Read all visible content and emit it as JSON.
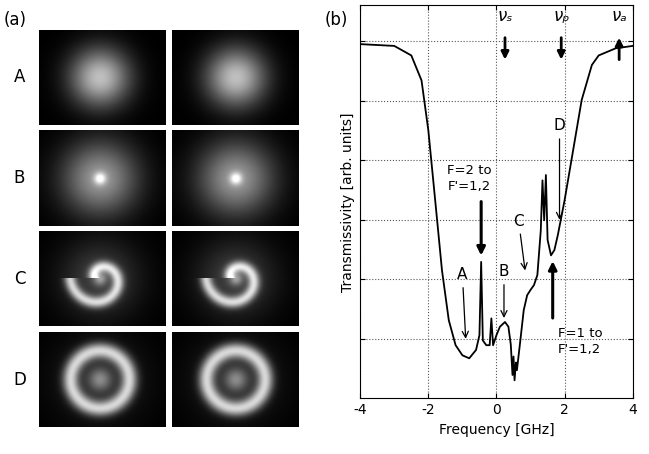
{
  "panel_a": {
    "label": "(a)",
    "rows": [
      "A",
      "B",
      "C",
      "D"
    ]
  },
  "chart_data": {
    "type": "line",
    "panel_label": "(b)",
    "x_label": "Frequency [GHz]",
    "y_label": "Transmissivity [arb. units]",
    "x": [
      -4,
      -3,
      -2.5,
      -2.2,
      -2,
      -1.8,
      -1.6,
      -1.4,
      -1.2,
      -1.0,
      -0.8,
      -0.6,
      -0.5,
      -0.45,
      -0.4,
      -0.3,
      -0.2,
      -0.15,
      -0.1,
      0.0,
      0.1,
      0.25,
      0.35,
      0.42,
      0.47,
      0.5,
      0.53,
      0.57,
      0.6,
      0.7,
      0.8,
      0.9,
      1.0,
      1.1,
      1.2,
      1.3,
      1.35,
      1.4,
      1.45,
      1.5,
      1.6,
      1.7,
      1.8,
      2.0,
      2.2,
      2.5,
      2.8,
      3.0,
      3.5,
      4.0
    ],
    "values": [
      5.95,
      5.92,
      5.76,
      5.34,
      4.5,
      3.33,
      2.15,
      1.31,
      0.89,
      0.72,
      0.67,
      0.81,
      1.06,
      2.29,
      0.97,
      0.89,
      0.89,
      1.34,
      0.89,
      1.06,
      1.2,
      1.28,
      1.2,
      0.9,
      0.39,
      0.7,
      0.3,
      0.6,
      0.47,
      0.97,
      1.48,
      1.73,
      1.82,
      1.9,
      2.07,
      2.82,
      3.66,
      2.99,
      3.75,
      2.66,
      2.4,
      2.49,
      2.74,
      3.33,
      4.0,
      5.01,
      5.6,
      5.76,
      5.88,
      5.92
    ],
    "color": "#000000",
    "xlim": [
      -4,
      4
    ],
    "xticks": [
      -4,
      -2,
      0,
      2,
      4
    ],
    "ylim": [
      0,
      6.6
    ],
    "yticks": [
      1,
      2,
      3,
      4,
      5,
      6
    ],
    "grid": true,
    "tick_labels": "x",
    "labels": [
      {
        "text": "A",
        "x": -0.9,
        "y": 0.95
      },
      {
        "text": "B",
        "x": 0.22,
        "y": 1.3
      },
      {
        "text": "C",
        "x": 0.85,
        "y": 2.1
      },
      {
        "text": "D",
        "x": 1.85,
        "y": 2.95
      }
    ],
    "transitions": [
      {
        "text": "F=2 to\nF'=1,2",
        "x": -0.45,
        "y": 2.35
      },
      {
        "text": "F=1 to\nF'=1,2",
        "x": 1.65,
        "y": 2.35
      }
    ],
    "markers": [
      {
        "text": "νₛ",
        "x": 0.25
      },
      {
        "text": "νₚ",
        "x": 1.9
      },
      {
        "text": "νₐ",
        "x": 3.6
      }
    ]
  }
}
